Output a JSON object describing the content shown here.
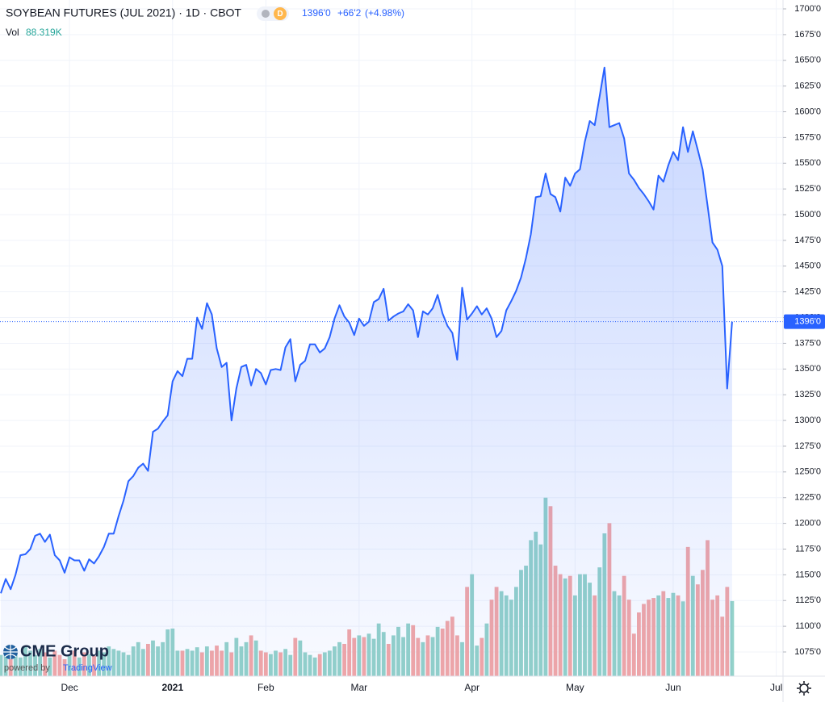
{
  "chart_data": {
    "type": "line",
    "title": "SOYBEAN FUTURES (JUL 2021) · 1D · CBOT",
    "interval_badge": "D",
    "change": {
      "value": 66.25,
      "label": "+66'2"
    },
    "change_percent": {
      "value": 4.98,
      "label": "(+4.98%)"
    },
    "branding": {
      "logo": "CME Group",
      "powered_by": "powered by",
      "platform": "TradingView"
    },
    "grid": true,
    "categories": [
      null,
      null,
      null,
      null,
      null,
      null,
      null,
      null,
      null,
      null,
      null,
      null,
      null,
      null,
      "Dec",
      null,
      null,
      null,
      null,
      null,
      null,
      null,
      null,
      null,
      null,
      null,
      null,
      null,
      null,
      null,
      null,
      null,
      null,
      null,
      null,
      "2021",
      null,
      null,
      null,
      null,
      null,
      null,
      null,
      null,
      null,
      null,
      null,
      null,
      null,
      null,
      null,
      null,
      null,
      null,
      "Feb",
      null,
      null,
      null,
      null,
      null,
      null,
      null,
      null,
      null,
      null,
      null,
      null,
      null,
      null,
      null,
      null,
      null,
      null,
      "Mar",
      null,
      null,
      null,
      null,
      null,
      null,
      null,
      null,
      null,
      null,
      null,
      null,
      null,
      null,
      null,
      null,
      null,
      null,
      null,
      null,
      null,
      null,
      "Apr",
      null,
      null,
      null,
      null,
      null,
      null,
      null,
      null,
      null,
      null,
      null,
      null,
      null,
      null,
      null,
      null,
      null,
      null,
      null,
      null,
      "May",
      null,
      null,
      null,
      null,
      null,
      null,
      null,
      null,
      null,
      null,
      null,
      null,
      null,
      null,
      null,
      null,
      null,
      null,
      null,
      "Jun",
      null,
      null,
      null,
      null,
      null,
      null,
      null,
      null,
      null,
      null,
      null,
      null,
      null,
      null,
      null,
      null,
      null,
      null,
      null,
      null,
      "Jul"
    ],
    "series": [
      {
        "color": "#2962ff",
        "values": [
          1132,
          1146,
          1136,
          1150,
          1169,
          1170,
          1175,
          1188,
          1190,
          1182,
          1189,
          1169,
          1164,
          1152,
          1167,
          1164,
          1164,
          1154,
          1165,
          1161,
          1168,
          1177,
          1190,
          1190,
          1207,
          1222,
          1241,
          1246,
          1254,
          1258,
          1251,
          1289,
          1292,
          1299,
          1305,
          1338,
          1348,
          1343,
          1360,
          1360,
          1400,
          1389,
          1414,
          1403,
          1370,
          1352,
          1356,
          1300,
          1331,
          1352,
          1354,
          1334,
          1350,
          1346,
          1335,
          1349,
          1350,
          1349,
          1371,
          1379,
          1338,
          1354,
          1358,
          1374,
          1374,
          1366,
          1370,
          1381,
          1399,
          1412,
          1401,
          1395,
          1383,
          1399,
          1392,
          1396,
          1415,
          1418,
          1428,
          1397,
          1401,
          1404,
          1406,
          1413,
          1407,
          1381,
          1406,
          1403,
          1409,
          1422,
          1404,
          1392,
          1385,
          1359,
          1429,
          1398,
          1404,
          1411,
          1403,
          1409,
          1399,
          1381,
          1387,
          1407,
          1416,
          1426,
          1439,
          1458,
          1481,
          1517,
          1518,
          1540,
          1520,
          1517,
          1503,
          1536,
          1528,
          1540,
          1544,
          1571,
          1591,
          1587,
          1615,
          1643,
          1585,
          1587,
          1589,
          1574,
          1540,
          1534,
          1526,
          1520,
          1513,
          1505,
          1538,
          1532,
          1548,
          1561,
          1553,
          1585,
          1561,
          1581,
          1563,
          1544,
          1509,
          1473,
          1466,
          1450,
          1331,
          1396,
          null,
          null,
          null,
          null,
          null,
          null,
          null,
          null,
          null
        ],
        "value_labels": {
          "149": "1396'0"
        }
      },
      {
        "name": "Vol",
        "type": "bar",
        "axis": "y2",
        "up_color": "#94d2c9",
        "down_color": "#f3a7a6",
        "values": [
          25,
          30,
          20,
          28,
          22,
          35,
          30,
          25,
          32,
          28,
          22,
          30,
          25,
          20,
          25,
          30,
          22,
          28,
          26,
          24,
          30,
          28,
          35,
          32,
          30,
          28,
          25,
          35,
          40,
          32,
          38,
          42,
          35,
          40,
          55,
          56,
          30,
          30,
          32,
          30,
          34,
          28,
          35,
          30,
          36,
          30,
          40,
          28,
          45,
          35,
          40,
          48,
          42,
          30,
          28,
          26,
          30,
          28,
          32,
          25,
          45,
          42,
          28,
          25,
          22,
          26,
          28,
          30,
          35,
          40,
          38,
          55,
          45,
          48,
          46,
          50,
          44,
          62,
          52,
          38,
          48,
          58,
          46,
          62,
          60,
          45,
          40,
          48,
          46,
          58,
          56,
          65,
          70,
          48,
          40,
          105,
          120,
          36,
          45,
          62,
          90,
          105,
          100,
          95,
          90,
          105,
          125,
          130,
          160,
          170,
          155,
          210,
          200,
          130,
          120,
          115,
          118,
          95,
          120,
          120,
          110,
          95,
          128,
          168,
          180,
          100,
          95,
          118,
          90,
          50,
          75,
          85,
          90,
          92,
          95,
          100,
          92,
          98,
          95,
          88,
          152,
          118,
          108,
          125,
          160,
          90,
          95,
          70,
          105,
          88.319,
          null,
          null,
          null,
          null,
          null,
          null,
          null,
          null,
          null
        ],
        "value_labels": {
          "149": "88.319K"
        }
      }
    ],
    "ylim": [
      1065,
      1710
    ],
    "yticks": [
      {
        "value": 1075,
        "label": "1075'0"
      },
      {
        "value": 1100,
        "label": "1100'0"
      },
      {
        "value": 1125,
        "label": "1125'0"
      },
      {
        "value": 1150,
        "label": "1150'0"
      },
      {
        "value": 1175,
        "label": "1175'0"
      },
      {
        "value": 1200,
        "label": "1200'0"
      },
      {
        "value": 1225,
        "label": "1225'0"
      },
      {
        "value": 1250,
        "label": "1250'0"
      },
      {
        "value": 1275,
        "label": "1275'0"
      },
      {
        "value": 1300,
        "label": "1300'0"
      },
      {
        "value": 1325,
        "label": "1325'0"
      },
      {
        "value": 1350,
        "label": "1350'0"
      },
      {
        "value": 1375,
        "label": "1375'0"
      },
      {
        "value": 1400,
        "label": "1400'0"
      },
      {
        "value": 1425,
        "label": "1425'0"
      },
      {
        "value": 1450,
        "label": "1450'0"
      },
      {
        "value": 1475,
        "label": "1475'0"
      },
      {
        "value": 1500,
        "label": "1500'0"
      },
      {
        "value": 1525,
        "label": "1525'0"
      },
      {
        "value": 1550,
        "label": "1550'0"
      },
      {
        "value": 1575,
        "label": "1575'0"
      },
      {
        "value": 1600,
        "label": "1600'0"
      },
      {
        "value": 1625,
        "label": "1625'0"
      },
      {
        "value": 1650,
        "label": "1650'0"
      },
      {
        "value": 1675,
        "label": "1675'0"
      },
      {
        "value": 1700,
        "label": "1700'0"
      }
    ],
    "y2lim": [
      0,
      785
    ]
  }
}
